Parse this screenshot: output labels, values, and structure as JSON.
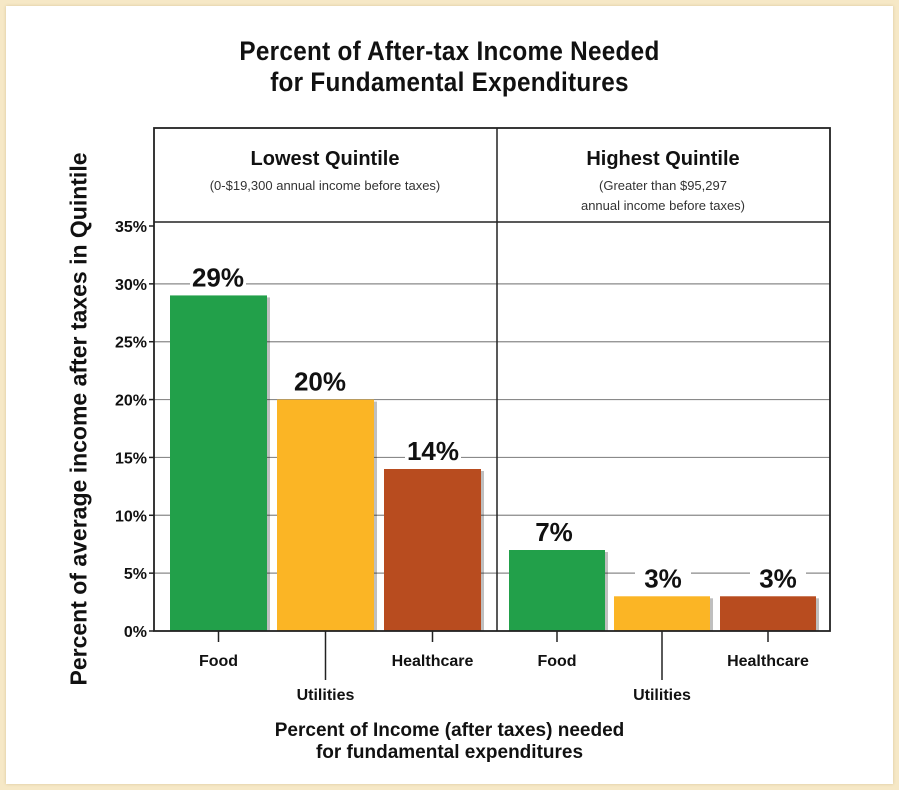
{
  "title_line1": "Percent of After-tax Income Needed",
  "title_line2": "for Fundamental Expenditures",
  "ylabel": "Percent of average income after taxes in Quintile",
  "xlabel_line1": "Percent of Income (after taxes) needed",
  "xlabel_line2": "for fundamental expenditures",
  "panels": [
    {
      "heading": "Lowest Quintile",
      "sub": [
        "(0-$19,300 annual income before taxes)"
      ]
    },
    {
      "heading": "Highest Quintile",
      "sub": [
        "(Greater than $95,297",
        "annual income before taxes)"
      ]
    }
  ],
  "colors": {
    "Food": "#22a04a",
    "Utilities": "#fbb525",
    "Healthcare": "#b84c1f",
    "background": "#f6e8c6"
  },
  "chart_data": {
    "type": "bar",
    "title": "Percent of After-tax Income Needed for Fundamental Expenditures",
    "xlabel": "Percent of Income (after taxes) needed for fundamental expenditures",
    "ylabel": "Percent of average income after taxes in Quintile",
    "ylim": [
      0,
      35
    ],
    "yticks": [
      "0%",
      "5%",
      "10%",
      "15%",
      "20%",
      "25%",
      "30%",
      "35%"
    ],
    "grid": true,
    "groups": [
      "Lowest Quintile",
      "Highest Quintile"
    ],
    "categories": [
      "Food",
      "Utilities",
      "Healthcare"
    ],
    "series": [
      {
        "group": "Lowest Quintile",
        "values": [
          29,
          20,
          14
        ],
        "labels": [
          "29%",
          "20%",
          "14%"
        ]
      },
      {
        "group": "Highest Quintile",
        "values": [
          7,
          3,
          3
        ],
        "labels": [
          "7%",
          "3%",
          "3%"
        ]
      }
    ]
  }
}
